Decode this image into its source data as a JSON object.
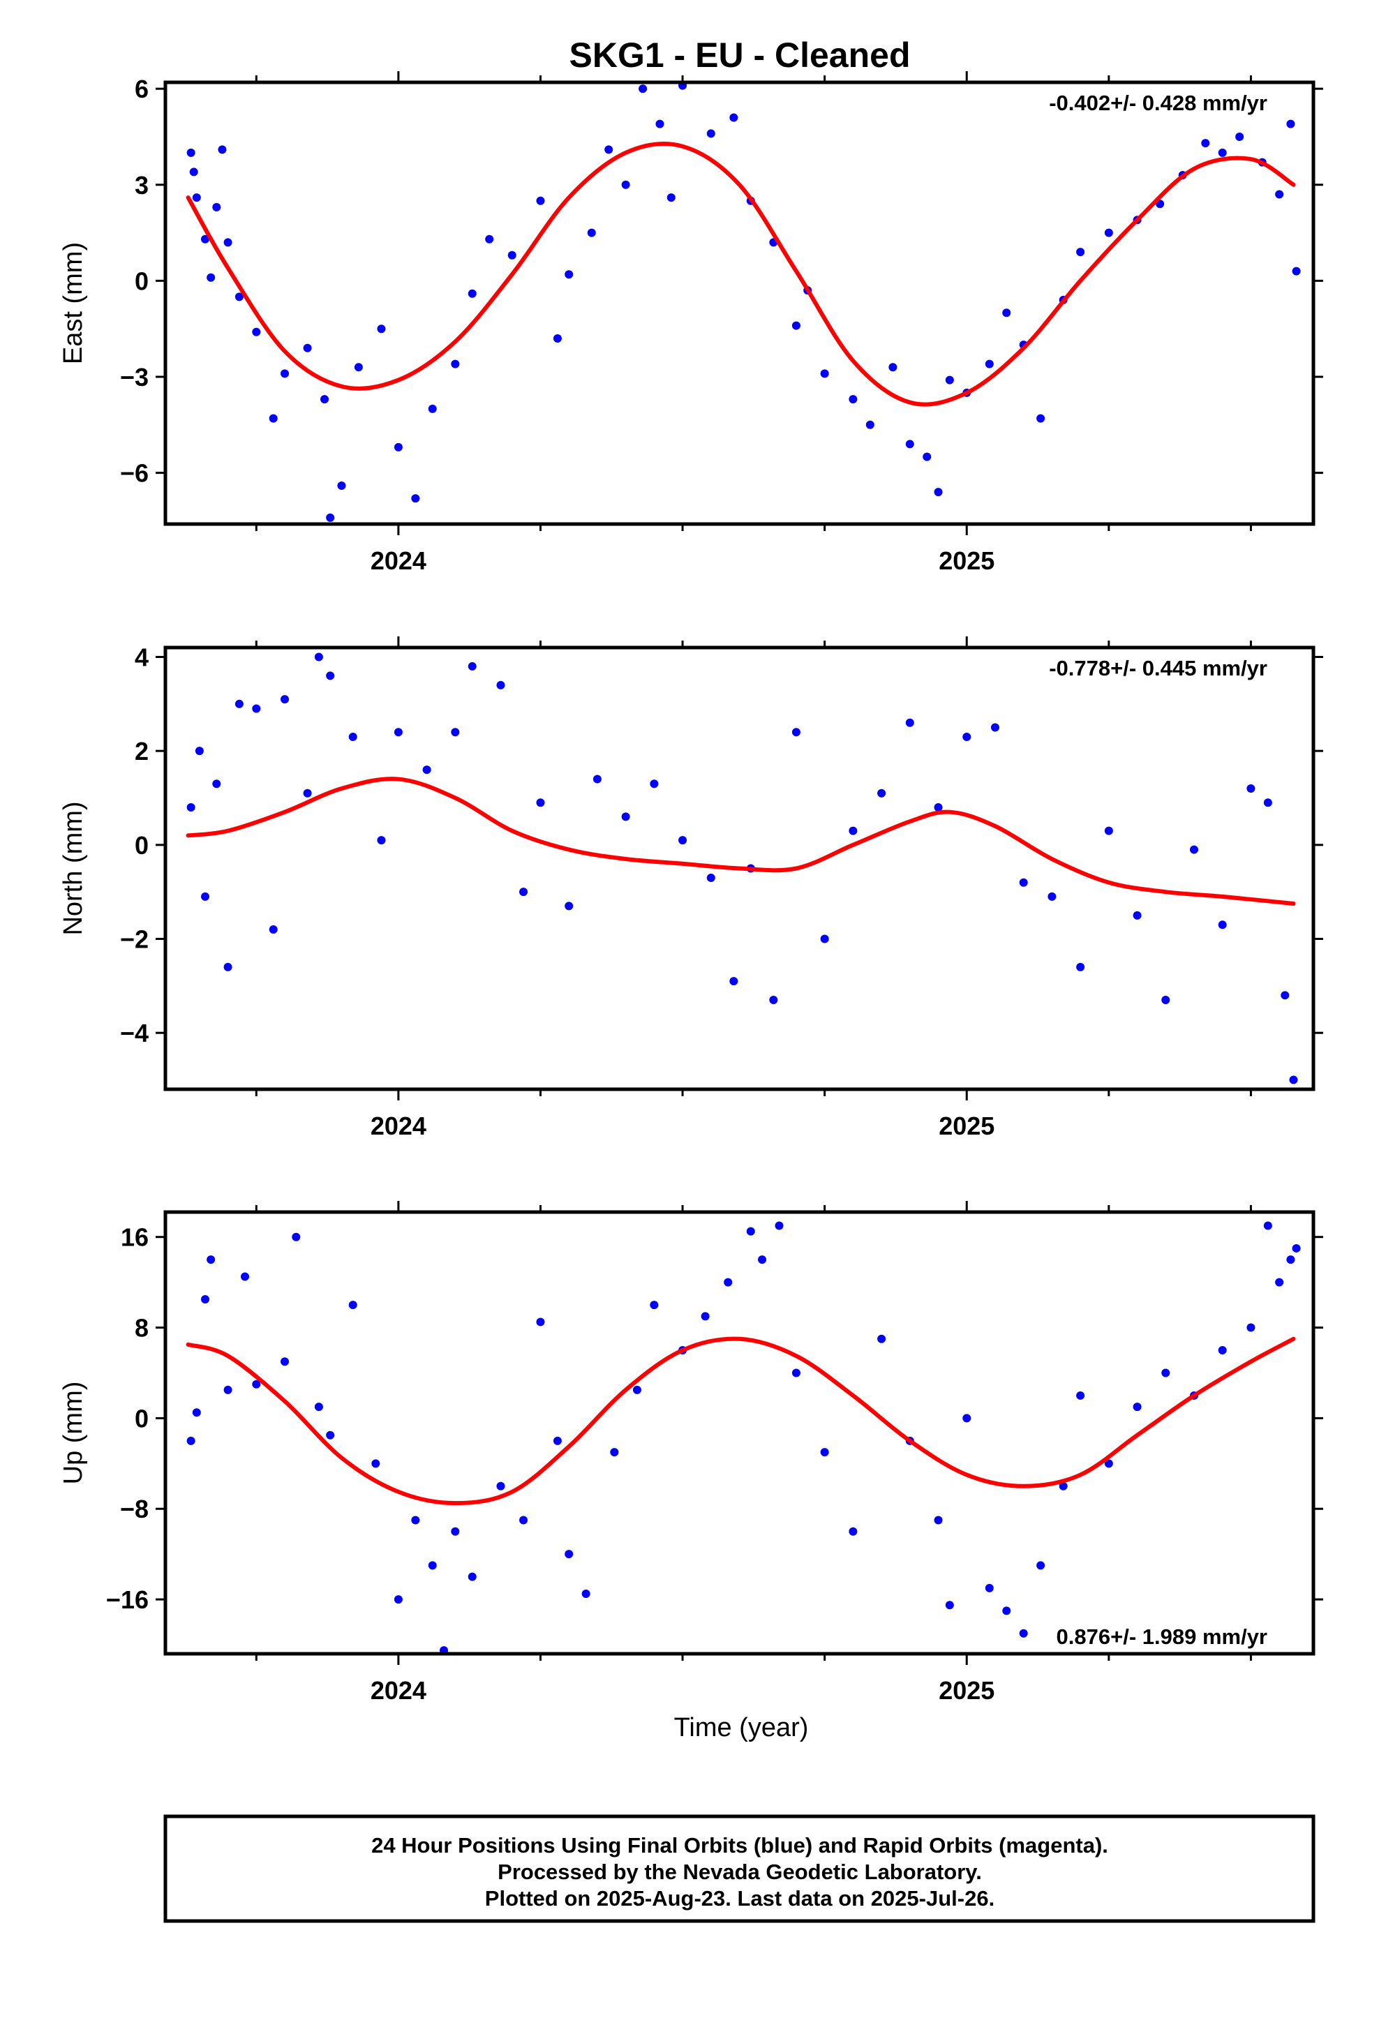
{
  "title": "SKG1  - EU - Cleaned",
  "xlabel": "Time (year)",
  "footer": {
    "lines": [
      "24 Hour Positions Using Final Orbits (blue) and Rapid Orbits (magenta).",
      "Processed by the Nevada Geodetic Laboratory.",
      "Plotted on 2025-Aug-23. Last data on 2025-Jul-26."
    ]
  },
  "colors": {
    "points": "#0000ff",
    "model": "#ff0000",
    "frame": "#000000"
  },
  "chart_data": [
    {
      "type": "scatter",
      "panel": "east",
      "ylabel": "East (mm)",
      "rate_label": "-0.402+/- 0.428 mm/yr",
      "rate_position": "top-right",
      "xlim": [
        2023.59,
        2025.61
      ],
      "ylim": [
        -7.6,
        6.2
      ],
      "yticks": [
        6,
        3,
        0,
        -3,
        -6
      ],
      "ytick_labels": [
        "6",
        "3",
        "0",
        "−3",
        "−6"
      ],
      "xticks": [
        2024,
        2025
      ],
      "xtick_labels": [
        "2024",
        "2025"
      ],
      "series": [
        {
          "kind": "points",
          "x": [
            2023.635,
            2023.64,
            2023.645,
            2023.66,
            2023.67,
            2023.68,
            2023.69,
            2023.7,
            2023.72,
            2023.75,
            2023.78,
            2023.8,
            2023.84,
            2023.87,
            2023.88,
            2023.9,
            2023.93,
            2023.97,
            2024.0,
            2024.03,
            2024.06,
            2024.1,
            2024.13,
            2024.16,
            2024.2,
            2024.25,
            2024.28,
            2024.3,
            2024.34,
            2024.37,
            2024.4,
            2024.43,
            2024.46,
            2024.48,
            2024.5,
            2024.55,
            2024.59,
            2024.62,
            2024.66,
            2024.7,
            2024.72,
            2024.75,
            2024.8,
            2024.83,
            2024.87,
            2024.9,
            2024.93,
            2024.95,
            2024.97,
            2025.0,
            2025.04,
            2025.07,
            2025.1,
            2025.13,
            2025.17,
            2025.2,
            2025.25,
            2025.3,
            2025.34,
            2025.38,
            2025.42,
            2025.45,
            2025.48,
            2025.52,
            2025.55,
            2025.57,
            2025.58
          ],
          "y": [
            4.0,
            3.4,
            2.6,
            1.3,
            0.1,
            2.3,
            4.1,
            1.2,
            -0.5,
            -1.6,
            -4.3,
            -2.9,
            -2.1,
            -3.7,
            -7.4,
            -6.4,
            -2.7,
            -1.5,
            -5.2,
            -6.8,
            -4.0,
            -2.6,
            -0.4,
            1.3,
            0.8,
            2.5,
            -1.8,
            0.2,
            1.5,
            4.1,
            3.0,
            6.0,
            4.9,
            2.6,
            6.1,
            4.6,
            5.1,
            2.5,
            1.2,
            -1.4,
            -0.3,
            -2.9,
            -3.7,
            -4.5,
            -2.7,
            -5.1,
            -5.5,
            -6.6,
            -3.1,
            -3.5,
            -2.6,
            -1.0,
            -2.0,
            -4.3,
            -0.6,
            0.9,
            1.5,
            1.9,
            2.4,
            3.3,
            4.3,
            4.0,
            4.5,
            3.7,
            2.7,
            4.9,
            0.3
          ]
        },
        {
          "kind": "model",
          "x": [
            2023.63,
            2023.7,
            2023.8,
            2023.9,
            2024.0,
            2024.1,
            2024.2,
            2024.3,
            2024.4,
            2024.5,
            2024.6,
            2024.7,
            2024.8,
            2024.9,
            2025.0,
            2025.1,
            2025.2,
            2025.3,
            2025.4,
            2025.5,
            2025.575
          ],
          "y": [
            2.6,
            0.4,
            -2.2,
            -3.3,
            -3.1,
            -1.9,
            0.2,
            2.6,
            4.0,
            4.2,
            3.0,
            0.3,
            -2.5,
            -3.8,
            -3.5,
            -2.1,
            0.0,
            1.9,
            3.5,
            3.8,
            3.0
          ]
        }
      ]
    },
    {
      "type": "scatter",
      "panel": "north",
      "ylabel": "North (mm)",
      "rate_label": "-0.778+/- 0.445 mm/yr",
      "rate_position": "top-right",
      "xlim": [
        2023.59,
        2025.61
      ],
      "ylim": [
        -5.2,
        4.2
      ],
      "yticks": [
        4,
        2,
        0,
        -2,
        -4
      ],
      "ytick_labels": [
        "4",
        "2",
        "0",
        "−2",
        "−4"
      ],
      "xticks": [
        2024,
        2025
      ],
      "xtick_labels": [
        "2024",
        "2025"
      ],
      "series": [
        {
          "kind": "points",
          "x": [
            2023.635,
            2023.65,
            2023.66,
            2023.68,
            2023.7,
            2023.72,
            2023.75,
            2023.78,
            2023.8,
            2023.84,
            2023.86,
            2023.88,
            2023.92,
            2023.97,
            2024.0,
            2024.05,
            2024.1,
            2024.13,
            2024.18,
            2024.22,
            2024.25,
            2024.3,
            2024.35,
            2024.4,
            2024.45,
            2024.5,
            2024.55,
            2024.59,
            2024.62,
            2024.66,
            2024.7,
            2024.75,
            2024.8,
            2024.85,
            2024.9,
            2024.95,
            2025.0,
            2025.05,
            2025.1,
            2025.15,
            2025.2,
            2025.25,
            2025.3,
            2025.35,
            2025.4,
            2025.45,
            2025.5,
            2025.53,
            2025.56,
            2025.575
          ],
          "y": [
            0.8,
            2.0,
            -1.1,
            1.3,
            -2.6,
            3.0,
            2.9,
            -1.8,
            3.1,
            1.1,
            4.0,
            3.6,
            2.3,
            0.1,
            2.4,
            1.6,
            2.4,
            3.8,
            3.4,
            -1.0,
            0.9,
            -1.3,
            1.4,
            0.6,
            1.3,
            0.1,
            -0.7,
            -2.9,
            -0.5,
            -3.3,
            2.4,
            -2.0,
            0.3,
            1.1,
            2.6,
            0.8,
            2.3,
            2.5,
            -0.8,
            -1.1,
            -2.6,
            0.3,
            -1.5,
            -3.3,
            -0.1,
            -1.7,
            1.2,
            0.9,
            -3.2,
            -5.0
          ]
        },
        {
          "kind": "model",
          "x": [
            2023.63,
            2023.7,
            2023.8,
            2023.9,
            2024.0,
            2024.1,
            2024.2,
            2024.3,
            2024.4,
            2024.5,
            2024.6,
            2024.7,
            2024.8,
            2024.9,
            2024.97,
            2025.05,
            2025.15,
            2025.25,
            2025.35,
            2025.45,
            2025.575
          ],
          "y": [
            0.2,
            0.3,
            0.7,
            1.2,
            1.4,
            1.0,
            0.3,
            -0.1,
            -0.3,
            -0.4,
            -0.5,
            -0.5,
            0.0,
            0.5,
            0.7,
            0.4,
            -0.3,
            -0.8,
            -1.0,
            -1.1,
            -1.25
          ]
        }
      ]
    },
    {
      "type": "scatter",
      "panel": "up",
      "ylabel": "Up (mm)",
      "rate_label": "0.876+/- 1.989 mm/yr",
      "rate_position": "bottom-right",
      "xlim": [
        2023.59,
        2025.61
      ],
      "ylim": [
        -20.8,
        18.2
      ],
      "yticks": [
        16,
        8,
        0,
        -8,
        -16
      ],
      "ytick_labels": [
        "16",
        "8",
        "0",
        "−8",
        "−16"
      ],
      "xticks": [
        2024,
        2025
      ],
      "xtick_labels": [
        "2024",
        "2025"
      ],
      "series": [
        {
          "kind": "points",
          "x": [
            2023.635,
            2023.645,
            2023.66,
            2023.67,
            2023.7,
            2023.73,
            2023.75,
            2023.8,
            2023.82,
            2023.86,
            2023.88,
            2023.92,
            2023.96,
            2024.0,
            2024.03,
            2024.06,
            2024.08,
            2024.1,
            2024.13,
            2024.18,
            2024.22,
            2024.25,
            2024.28,
            2024.3,
            2024.33,
            2024.38,
            2024.42,
            2024.45,
            2024.5,
            2024.54,
            2024.58,
            2024.62,
            2024.64,
            2024.67,
            2024.7,
            2024.75,
            2024.8,
            2024.85,
            2024.9,
            2024.95,
            2024.97,
            2025.0,
            2025.04,
            2025.07,
            2025.1,
            2025.13,
            2025.17,
            2025.2,
            2025.25,
            2025.3,
            2025.35,
            2025.4,
            2025.45,
            2025.5,
            2025.53,
            2025.55,
            2025.57,
            2025.58
          ],
          "y": [
            -2.0,
            0.5,
            10.5,
            14.0,
            2.5,
            12.5,
            3.0,
            5.0,
            16.0,
            1.0,
            -1.5,
            10.0,
            -4.0,
            -16.0,
            -9.0,
            -13.0,
            -20.5,
            -10.0,
            -14.0,
            -6.0,
            -9.0,
            8.5,
            -2.0,
            -12.0,
            -15.5,
            -3.0,
            2.5,
            10.0,
            6.0,
            9.0,
            12.0,
            16.5,
            14.0,
            17.0,
            4.0,
            -3.0,
            -10.0,
            7.0,
            -2.0,
            -9.0,
            -16.5,
            0.0,
            -15.0,
            -17.0,
            -19.0,
            -13.0,
            -6.0,
            2.0,
            -4.0,
            1.0,
            4.0,
            2.0,
            6.0,
            8.0,
            17.0,
            12.0,
            14.0,
            15.0
          ]
        },
        {
          "kind": "model",
          "x": [
            2023.63,
            2023.7,
            2023.8,
            2023.9,
            2024.0,
            2024.1,
            2024.2,
            2024.3,
            2024.4,
            2024.5,
            2024.6,
            2024.7,
            2024.8,
            2024.9,
            2025.0,
            2025.1,
            2025.2,
            2025.3,
            2025.4,
            2025.5,
            2025.575
          ],
          "y": [
            6.5,
            5.5,
            1.5,
            -3.5,
            -6.5,
            -7.5,
            -6.5,
            -2.5,
            2.5,
            6.0,
            7.0,
            5.5,
            2.0,
            -2.0,
            -5.0,
            -6.0,
            -5.0,
            -1.5,
            2.0,
            5.0,
            7.0
          ]
        }
      ]
    }
  ]
}
